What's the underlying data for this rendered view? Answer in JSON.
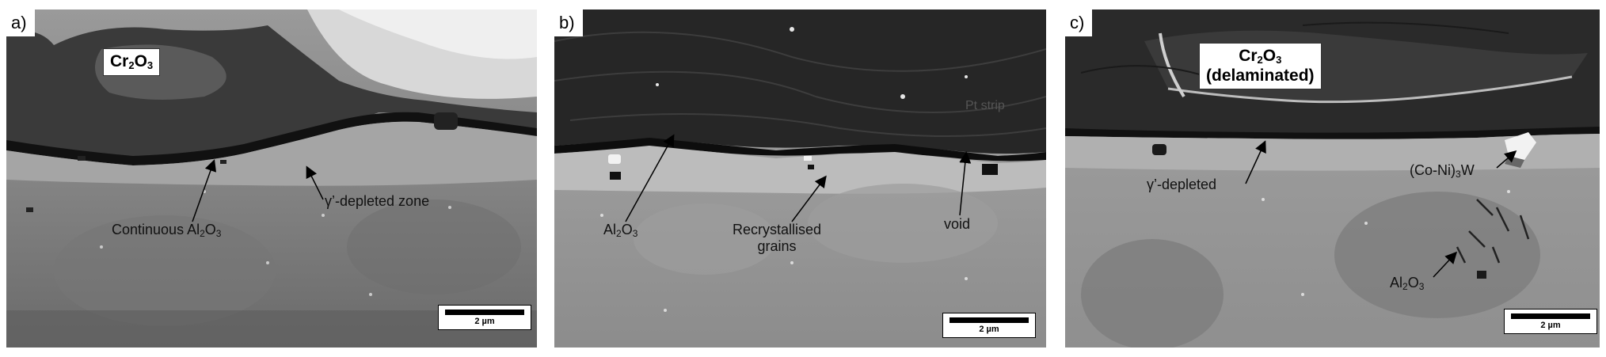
{
  "colors": {
    "oxide_dark": "#1e1e1e",
    "substrate_gray": "#8a8a8a",
    "scale_bg": "#ffffff"
  },
  "panels": {
    "a": {
      "label": "a)",
      "scale_bar": "2 µm",
      "box_label": {
        "main": "Cr",
        "sub1": "2",
        "mid": "O",
        "sub2": "3"
      },
      "annotations": {
        "al2o3": {
          "pre": "Continuous Al",
          "sub1": "2",
          "mid": "O",
          "sub2": "3"
        },
        "depleted": "γ’-depleted zone"
      }
    },
    "b": {
      "label": "b)",
      "scale_bar": "2 µm",
      "annotations": {
        "al2o3": {
          "pre": "Al",
          "sub1": "2",
          "mid": "O",
          "sub2": "3"
        },
        "recryst_line1": "Recrystallised",
        "recryst_line2": "grains",
        "void": "void",
        "ptstrip": "Pt strip"
      }
    },
    "c": {
      "label": "c)",
      "scale_bar": "2 µm",
      "box_label": {
        "main": "Cr",
        "sub1": "2",
        "mid": "O",
        "sub2": "3",
        "line2": "(delaminated)"
      },
      "annotations": {
        "depleted": "γ’-depleted",
        "w_phase": {
          "pre": "(Co-Ni)",
          "sub1": "3",
          "post": "W"
        },
        "al2o3": {
          "pre": "Al",
          "sub1": "2",
          "mid": "O",
          "sub2": "3"
        }
      }
    }
  }
}
